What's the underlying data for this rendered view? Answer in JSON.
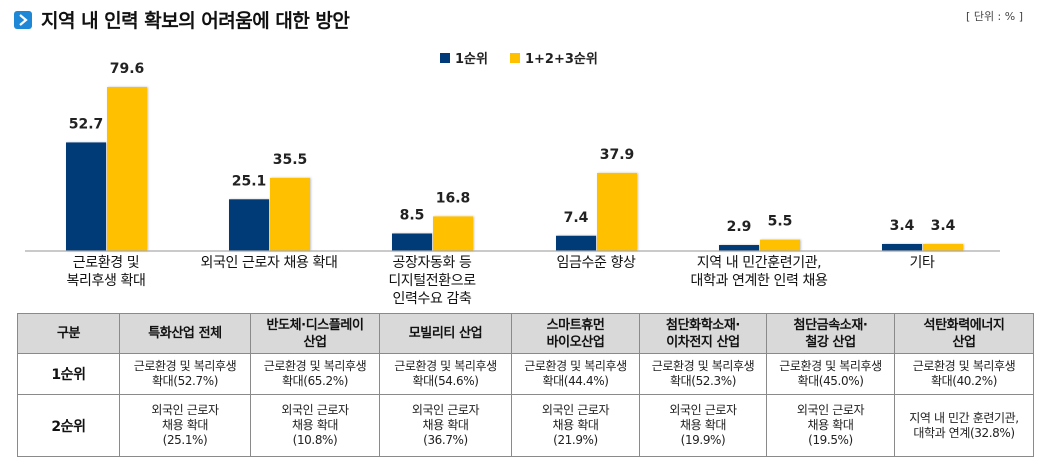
{
  "header": {
    "title": "지역 내 인력 확보의 어려움에 대한 방안",
    "title_icon": "chevron-right-icon",
    "unit_label": "[ 단위 : % ]"
  },
  "colors": {
    "series1": "#003a78",
    "series2": "#ffc000",
    "title_icon_bg": "#1e88d6",
    "table_header_bg": "#d9d9d9"
  },
  "chart_data": {
    "type": "bar",
    "title": "지역 내 인력 확보의 어려움에 대한 방안",
    "xlabel": "",
    "ylabel": "",
    "unit": "%",
    "ylim": [
      0,
      85
    ],
    "grid": false,
    "legend_position": "top-center",
    "categories": [
      "근로환경 및\n복리후생 확대",
      "외국인 근로자 채용 확대",
      "공장자동화 등\n디지털전환으로\n인력수요 감축",
      "임금수준 향상",
      "지역 내 민간훈련기관,\n대학과 연계한 인력 채용",
      "기타"
    ],
    "series": [
      {
        "name": "1순위",
        "values": [
          52.7,
          25.1,
          8.5,
          7.4,
          2.9,
          3.4
        ]
      },
      {
        "name": "1+2+3순위",
        "values": [
          79.6,
          35.5,
          16.8,
          37.9,
          5.5,
          3.4
        ]
      }
    ]
  },
  "table": {
    "headers": [
      "구분",
      "특화산업 전체",
      "반도체·디스플레이\n산업",
      "모빌리티 산업",
      "스마트휴먼\n바이오산업",
      "첨단화학소재·\n이차전지 산업",
      "첨단금속소재·\n철강 산업",
      "석탄화력에너지\n산업"
    ],
    "rows": [
      {
        "label": "1순위",
        "cells": [
          "근로환경 및 복리후생\n확대(52.7%)",
          "근로환경 및 복리후생\n확대(65.2%)",
          "근로환경 및 복리후생\n확대(54.6%)",
          "근로환경 및 복리후생\n확대(44.4%)",
          "근로환경 및 복리후생\n확대(52.3%)",
          "근로환경 및 복리후생\n확대(45.0%)",
          "근로환경 및 복리후생\n확대(40.2%)"
        ]
      },
      {
        "label": "2순위",
        "cells": [
          "외국인 근로자\n채용 확대\n(25.1%)",
          "외국인 근로자\n채용 확대\n(10.8%)",
          "외국인 근로자\n채용 확대\n(36.7%)",
          "외국인 근로자\n채용 확대\n(21.9%)",
          "외국인 근로자\n채용 확대\n(19.9%)",
          "외국인 근로자\n채용 확대\n(19.5%)",
          "지역 내 민간 훈련기관,\n대학과 연계(32.8%)"
        ]
      }
    ]
  }
}
